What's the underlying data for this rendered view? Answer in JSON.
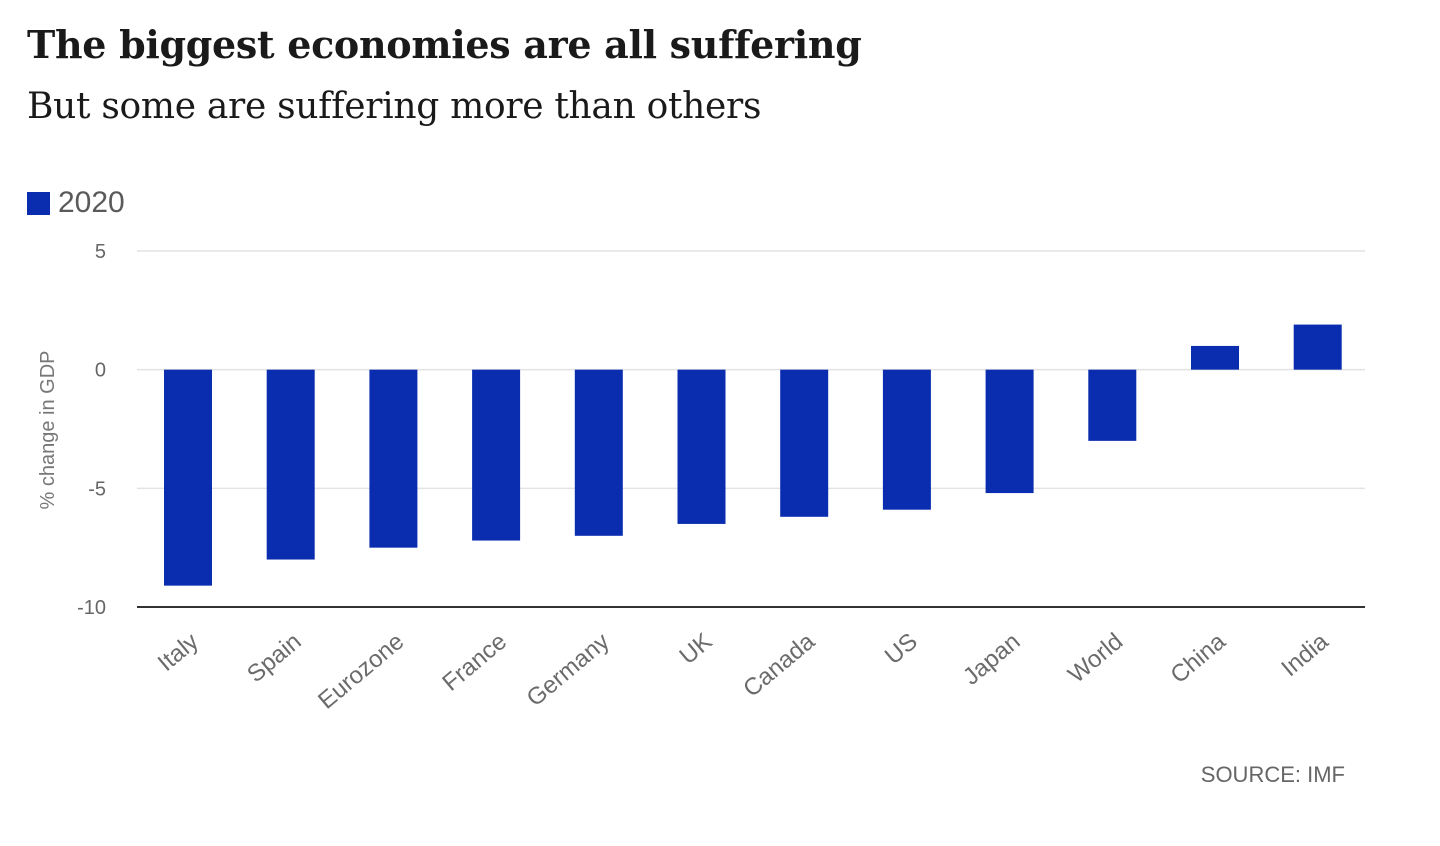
{
  "chart_data": {
    "type": "bar",
    "title": "The biggest economies are all suffering",
    "subtitle": "But some are suffering more than others",
    "ylabel": "% change in GDP",
    "xlabel": "",
    "ylim": [
      -10,
      5
    ],
    "yticks": [
      5,
      0,
      -5,
      -10
    ],
    "grid": true,
    "legend_position": "top-left",
    "categories": [
      "Italy",
      "Spain",
      "Eurozone",
      "France",
      "Germany",
      "UK",
      "Canada",
      "US",
      "Japan",
      "World",
      "China",
      "India"
    ],
    "series": [
      {
        "name": "2020",
        "color": "#0a2db0",
        "values": [
          -9.1,
          -8.0,
          -7.5,
          -7.2,
          -7.0,
          -6.5,
          -6.2,
          -5.9,
          -5.2,
          -3.0,
          1.0,
          1.9
        ]
      }
    ],
    "source": "SOURCE: IMF"
  }
}
